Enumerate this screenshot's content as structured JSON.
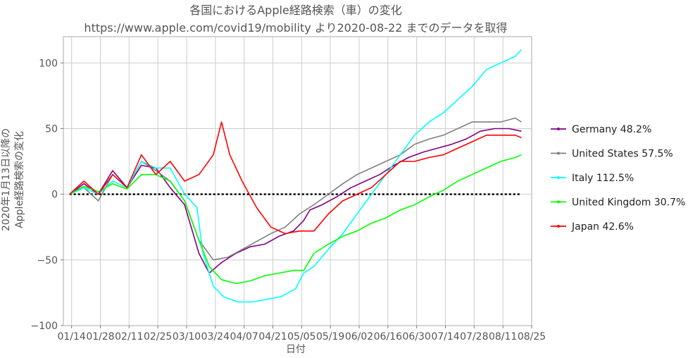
{
  "chart_data": {
    "type": "line",
    "title": "各国におけるApple経路検索（車）の変化",
    "subtitle": "https://www.apple.com/covid19/mobility より2020-08-22 までのデータを取得",
    "xlabel": "日付",
    "ylabel_line1": "2020年1月13日以降の",
    "ylabel_line2": "Apple経路検索の変化",
    "ylim": [
      -100,
      120
    ],
    "yticks": [
      -100,
      -50,
      0,
      50,
      100
    ],
    "ytick_labels": [
      "−100",
      "−50",
      "0",
      "50",
      "100"
    ],
    "xlim_days": [
      -3,
      225
    ],
    "xticks_days": [
      1,
      15,
      29,
      43,
      57,
      71,
      85,
      99,
      113,
      127,
      141,
      155,
      169,
      183,
      197,
      211,
      225
    ],
    "xtick_labels": [
      "01/14",
      "01/28",
      "02/11",
      "02/25",
      "03/10",
      "03/24",
      "04/07",
      "04/21",
      "05/05",
      "05/19",
      "06/02",
      "06/16",
      "06/30",
      "07/14",
      "07/28",
      "08/11",
      "08/25"
    ],
    "grid": true,
    "baseline": 0,
    "legend_position": "right",
    "series": [
      {
        "name": "Germany 48.2%",
        "color": "#800080",
        "points": [
          [
            0,
            0
          ],
          [
            7,
            8
          ],
          [
            14,
            0
          ],
          [
            21,
            18
          ],
          [
            28,
            5
          ],
          [
            35,
            22
          ],
          [
            42,
            20
          ],
          [
            49,
            5
          ],
          [
            56,
            -8
          ],
          [
            63,
            -45
          ],
          [
            68,
            -60
          ],
          [
            74,
            -52
          ],
          [
            81,
            -45
          ],
          [
            88,
            -40
          ],
          [
            95,
            -38
          ],
          [
            102,
            -32
          ],
          [
            109,
            -28
          ],
          [
            114,
            -20
          ],
          [
            117,
            -12
          ],
          [
            123,
            -8
          ],
          [
            130,
            -2
          ],
          [
            137,
            5
          ],
          [
            144,
            10
          ],
          [
            151,
            15
          ],
          [
            158,
            22
          ],
          [
            165,
            28
          ],
          [
            172,
            32
          ],
          [
            179,
            35
          ],
          [
            186,
            38
          ],
          [
            193,
            42
          ],
          [
            200,
            48
          ],
          [
            207,
            50
          ],
          [
            214,
            50
          ],
          [
            220,
            48
          ]
        ]
      },
      {
        "name": "United States 57.5%",
        "color": "#808080",
        "points": [
          [
            0,
            0
          ],
          [
            7,
            5
          ],
          [
            14,
            -5
          ],
          [
            21,
            15
          ],
          [
            28,
            5
          ],
          [
            35,
            25
          ],
          [
            42,
            18
          ],
          [
            49,
            10
          ],
          [
            56,
            -5
          ],
          [
            63,
            -35
          ],
          [
            70,
            -50
          ],
          [
            77,
            -48
          ],
          [
            84,
            -42
          ],
          [
            91,
            -36
          ],
          [
            98,
            -30
          ],
          [
            105,
            -25
          ],
          [
            112,
            -15
          ],
          [
            119,
            -8
          ],
          [
            126,
            0
          ],
          [
            133,
            8
          ],
          [
            140,
            15
          ],
          [
            147,
            20
          ],
          [
            154,
            25
          ],
          [
            161,
            30
          ],
          [
            168,
            38
          ],
          [
            175,
            42
          ],
          [
            182,
            45
          ],
          [
            189,
            50
          ],
          [
            196,
            55
          ],
          [
            203,
            55
          ],
          [
            210,
            55
          ],
          [
            217,
            58
          ],
          [
            220,
            55
          ]
        ]
      },
      {
        "name": "Italy 112.5%",
        "color": "#00FFFF",
        "points": [
          [
            0,
            0
          ],
          [
            7,
            5
          ],
          [
            14,
            0
          ],
          [
            21,
            10
          ],
          [
            28,
            5
          ],
          [
            35,
            25
          ],
          [
            42,
            20
          ],
          [
            49,
            20
          ],
          [
            56,
            0
          ],
          [
            62,
            -10
          ],
          [
            65,
            -45
          ],
          [
            70,
            -70
          ],
          [
            75,
            -78
          ],
          [
            82,
            -82
          ],
          [
            89,
            -82
          ],
          [
            96,
            -80
          ],
          [
            103,
            -78
          ],
          [
            110,
            -72
          ],
          [
            114,
            -60
          ],
          [
            119,
            -55
          ],
          [
            126,
            -42
          ],
          [
            133,
            -30
          ],
          [
            140,
            -15
          ],
          [
            147,
            0
          ],
          [
            154,
            15
          ],
          [
            161,
            30
          ],
          [
            168,
            45
          ],
          [
            175,
            55
          ],
          [
            182,
            62
          ],
          [
            189,
            72
          ],
          [
            196,
            82
          ],
          [
            203,
            95
          ],
          [
            210,
            100
          ],
          [
            217,
            105
          ],
          [
            220,
            110
          ]
        ]
      },
      {
        "name": "United Kingdom 30.7%",
        "color": "#00FF00",
        "points": [
          [
            0,
            0
          ],
          [
            7,
            6
          ],
          [
            14,
            2
          ],
          [
            21,
            8
          ],
          [
            28,
            4
          ],
          [
            35,
            15
          ],
          [
            42,
            15
          ],
          [
            49,
            10
          ],
          [
            56,
            -5
          ],
          [
            63,
            -35
          ],
          [
            68,
            -55
          ],
          [
            74,
            -65
          ],
          [
            81,
            -68
          ],
          [
            88,
            -66
          ],
          [
            95,
            -62
          ],
          [
            102,
            -60
          ],
          [
            109,
            -58
          ],
          [
            114,
            -58
          ],
          [
            119,
            -45
          ],
          [
            126,
            -38
          ],
          [
            133,
            -32
          ],
          [
            140,
            -28
          ],
          [
            147,
            -22
          ],
          [
            154,
            -18
          ],
          [
            161,
            -12
          ],
          [
            168,
            -8
          ],
          [
            175,
            -2
          ],
          [
            182,
            3
          ],
          [
            189,
            10
          ],
          [
            196,
            15
          ],
          [
            203,
            20
          ],
          [
            210,
            25
          ],
          [
            217,
            28
          ],
          [
            220,
            30
          ]
        ]
      },
      {
        "name": "Japan 42.6%",
        "color": "#FF0000",
        "points": [
          [
            0,
            0
          ],
          [
            7,
            10
          ],
          [
            14,
            0
          ],
          [
            21,
            15
          ],
          [
            28,
            5
          ],
          [
            35,
            30
          ],
          [
            42,
            15
          ],
          [
            49,
            25
          ],
          [
            56,
            10
          ],
          [
            63,
            15
          ],
          [
            70,
            30
          ],
          [
            74,
            55
          ],
          [
            78,
            30
          ],
          [
            84,
            10
          ],
          [
            91,
            -10
          ],
          [
            98,
            -25
          ],
          [
            105,
            -30
          ],
          [
            112,
            -28
          ],
          [
            114,
            -28
          ],
          [
            119,
            -28
          ],
          [
            126,
            -15
          ],
          [
            133,
            -5
          ],
          [
            140,
            0
          ],
          [
            147,
            5
          ],
          [
            154,
            15
          ],
          [
            161,
            25
          ],
          [
            168,
            25
          ],
          [
            175,
            28
          ],
          [
            182,
            30
          ],
          [
            189,
            35
          ],
          [
            196,
            40
          ],
          [
            203,
            45
          ],
          [
            210,
            45
          ],
          [
            217,
            45
          ],
          [
            220,
            43
          ]
        ]
      }
    ]
  }
}
